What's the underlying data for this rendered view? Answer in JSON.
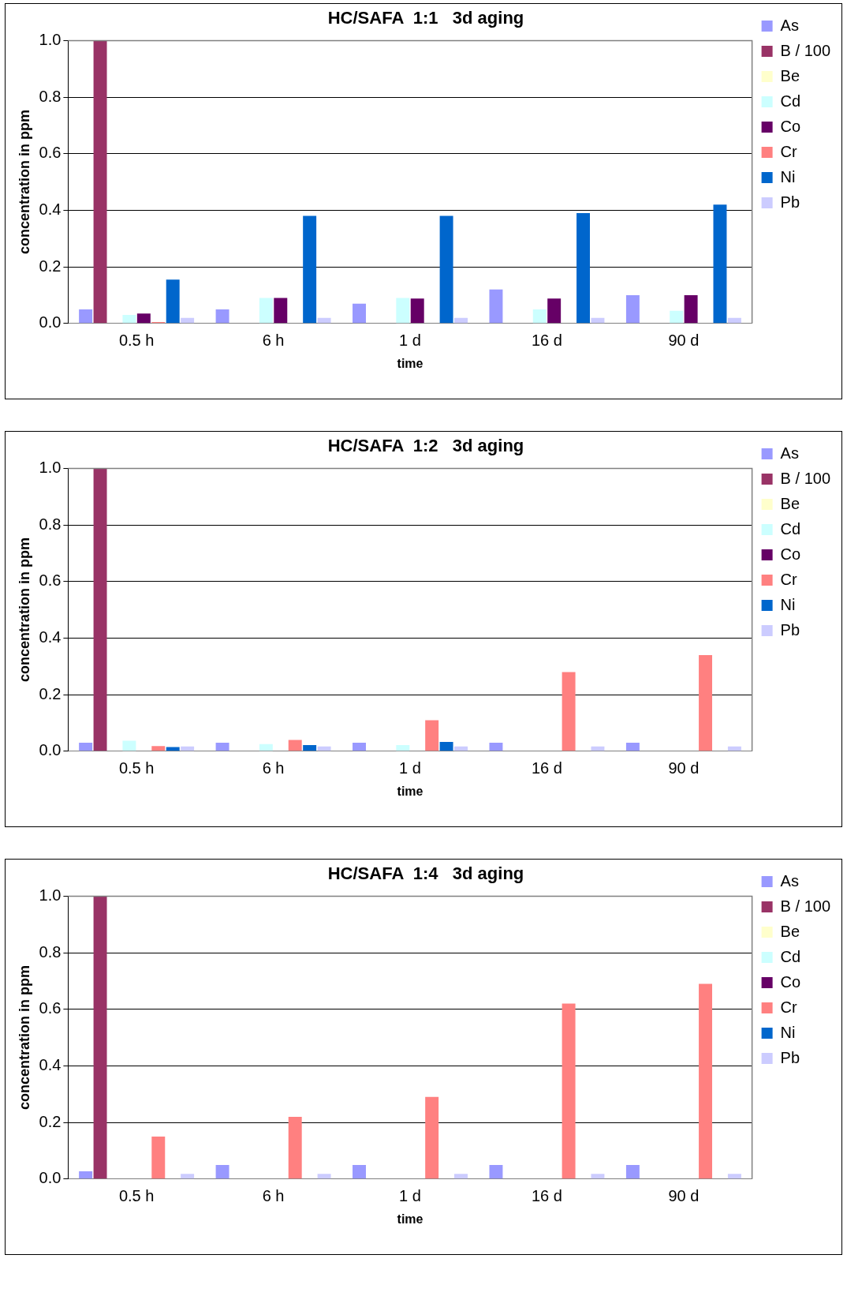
{
  "chart_data": [
    {
      "type": "bar",
      "title": "HC/SAFA  1:1   3d aging",
      "xlabel": "time",
      "ylabel": "concentration in ppm",
      "categories": [
        "0.5 h",
        "6 h",
        "1 d",
        "16 d",
        "90 d"
      ],
      "ylim": [
        0,
        1
      ],
      "yticks": [
        {
          "value": 0,
          "label": "0.0"
        },
        {
          "value": 0.2,
          "label": "0.2"
        },
        {
          "value": 0.4,
          "label": "0.4"
        },
        {
          "value": 0.6,
          "label": "0.6"
        },
        {
          "value": 0.8,
          "label": "0.8"
        },
        {
          "value": 1,
          "label": "1.0"
        }
      ],
      "grid": "y",
      "legend": "top right",
      "series": [
        {
          "name": "As",
          "color": "#9999ff",
          "values": [
            0.05,
            0.05,
            0.07,
            0.12,
            0.1
          ]
        },
        {
          "name": "B / 100",
          "color": "#993366",
          "values": [
            1.0,
            0,
            0,
            0,
            0
          ]
        },
        {
          "name": "Be",
          "color": "#ffffcc",
          "values": [
            0,
            0,
            0,
            0,
            0
          ]
        },
        {
          "name": "Cd",
          "color": "#ccffff",
          "values": [
            0.03,
            0.09,
            0.09,
            0.05,
            0.045
          ]
        },
        {
          "name": "Co",
          "color": "#660066",
          "values": [
            0.035,
            0.09,
            0.088,
            0.088,
            0.1
          ]
        },
        {
          "name": "Cr",
          "color": "#ff8080",
          "values": [
            0.005,
            0,
            0,
            0,
            0
          ]
        },
        {
          "name": "Ni",
          "color": "#0066cc",
          "values": [
            0.155,
            0.38,
            0.38,
            0.39,
            0.42
          ]
        },
        {
          "name": "Pb",
          "color": "#ccccff",
          "values": [
            0.02,
            0.02,
            0.02,
            0.02,
            0.02
          ]
        }
      ]
    },
    {
      "type": "bar",
      "title": "HC/SAFA  1:2   3d aging",
      "xlabel": "time",
      "ylabel": "concentration in ppm",
      "categories": [
        "0.5 h",
        "6 h",
        "1 d",
        "16 d",
        "90 d"
      ],
      "ylim": [
        0,
        1
      ],
      "yticks": [
        {
          "value": 0,
          "label": "0.0"
        },
        {
          "value": 0.2,
          "label": "0.2"
        },
        {
          "value": 0.4,
          "label": "0.4"
        },
        {
          "value": 0.6,
          "label": "0.6"
        },
        {
          "value": 0.8,
          "label": "0.8"
        },
        {
          "value": 1,
          "label": "1.0"
        }
      ],
      "grid": "y",
      "legend": "top right",
      "series": [
        {
          "name": "As",
          "color": "#9999ff",
          "values": [
            0.03,
            0.03,
            0.03,
            0.03,
            0.03
          ]
        },
        {
          "name": "B / 100",
          "color": "#993366",
          "values": [
            1.0,
            0,
            0,
            0,
            0
          ]
        },
        {
          "name": "Be",
          "color": "#ffffcc",
          "values": [
            0,
            0,
            0,
            0,
            0
          ]
        },
        {
          "name": "Cd",
          "color": "#ccffff",
          "values": [
            0.037,
            0.025,
            0.022,
            0,
            0
          ]
        },
        {
          "name": "Co",
          "color": "#660066",
          "values": [
            0,
            0,
            0,
            0,
            0
          ]
        },
        {
          "name": "Cr",
          "color": "#ff8080",
          "values": [
            0.018,
            0.04,
            0.11,
            0.28,
            0.34
          ]
        },
        {
          "name": "Ni",
          "color": "#0066cc",
          "values": [
            0.015,
            0.022,
            0.033,
            0,
            0
          ]
        },
        {
          "name": "Pb",
          "color": "#ccccff",
          "values": [
            0.017,
            0.017,
            0.017,
            0.017,
            0.017
          ]
        }
      ]
    },
    {
      "type": "bar",
      "title": "HC/SAFA  1:4   3d aging",
      "xlabel": "time",
      "ylabel": "concentration in ppm",
      "categories": [
        "0.5 h",
        "6 h",
        "1 d",
        "16 d",
        "90 d"
      ],
      "ylim": [
        0,
        1
      ],
      "yticks": [
        {
          "value": 0,
          "label": "0.0"
        },
        {
          "value": 0.2,
          "label": "0.2"
        },
        {
          "value": 0.4,
          "label": "0.4"
        },
        {
          "value": 0.6,
          "label": "0.6"
        },
        {
          "value": 0.8,
          "label": "0.8"
        },
        {
          "value": 1,
          "label": "1.0"
        }
      ],
      "grid": "y",
      "legend": "top right",
      "series": [
        {
          "name": "As",
          "color": "#9999ff",
          "values": [
            0.027,
            0.05,
            0.05,
            0.05,
            0.05
          ]
        },
        {
          "name": "B / 100",
          "color": "#993366",
          "values": [
            1.0,
            0,
            0,
            0,
            0
          ]
        },
        {
          "name": "Be",
          "color": "#ffffcc",
          "values": [
            0,
            0,
            0,
            0,
            0
          ]
        },
        {
          "name": "Cd",
          "color": "#ccffff",
          "values": [
            0,
            0,
            0,
            0,
            0
          ]
        },
        {
          "name": "Co",
          "color": "#660066",
          "values": [
            0,
            0,
            0,
            0,
            0
          ]
        },
        {
          "name": "Cr",
          "color": "#ff8080",
          "values": [
            0.15,
            0.22,
            0.29,
            0.62,
            0.69
          ]
        },
        {
          "name": "Ni",
          "color": "#0066cc",
          "values": [
            0,
            0,
            0,
            0,
            0
          ]
        },
        {
          "name": "Pb",
          "color": "#ccccff",
          "values": [
            0.018,
            0.018,
            0.018,
            0.018,
            0.018
          ]
        }
      ]
    }
  ]
}
